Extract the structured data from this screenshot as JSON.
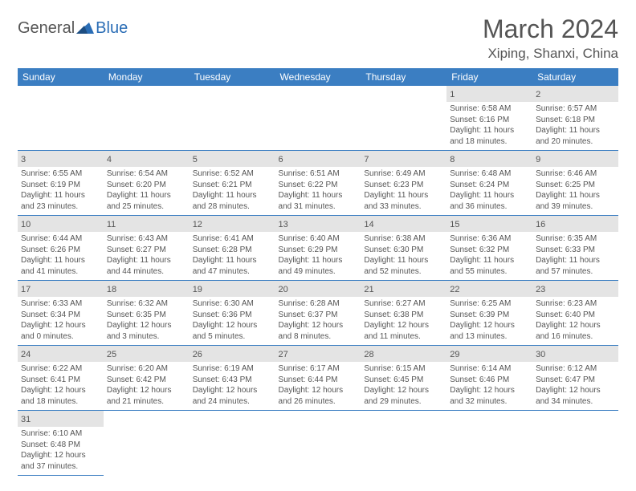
{
  "logo": {
    "general": "General",
    "blue": "Blue"
  },
  "title": "March 2024",
  "location": "Xiping, Shanxi, China",
  "colors": {
    "headerBg": "#3b7ec2",
    "headerText": "#ffffff",
    "dayStripe": "#e4e4e4",
    "rowBorder": "#3b7ec2",
    "bodyText": "#555555",
    "logoBlue": "#2a6db5"
  },
  "dayHeaders": [
    "Sunday",
    "Monday",
    "Tuesday",
    "Wednesday",
    "Thursday",
    "Friday",
    "Saturday"
  ],
  "weeks": [
    [
      null,
      null,
      null,
      null,
      null,
      {
        "n": "1",
        "sr": "Sunrise: 6:58 AM",
        "ss": "Sunset: 6:16 PM",
        "dl1": "Daylight: 11 hours",
        "dl2": "and 18 minutes."
      },
      {
        "n": "2",
        "sr": "Sunrise: 6:57 AM",
        "ss": "Sunset: 6:18 PM",
        "dl1": "Daylight: 11 hours",
        "dl2": "and 20 minutes."
      }
    ],
    [
      {
        "n": "3",
        "sr": "Sunrise: 6:55 AM",
        "ss": "Sunset: 6:19 PM",
        "dl1": "Daylight: 11 hours",
        "dl2": "and 23 minutes."
      },
      {
        "n": "4",
        "sr": "Sunrise: 6:54 AM",
        "ss": "Sunset: 6:20 PM",
        "dl1": "Daylight: 11 hours",
        "dl2": "and 25 minutes."
      },
      {
        "n": "5",
        "sr": "Sunrise: 6:52 AM",
        "ss": "Sunset: 6:21 PM",
        "dl1": "Daylight: 11 hours",
        "dl2": "and 28 minutes."
      },
      {
        "n": "6",
        "sr": "Sunrise: 6:51 AM",
        "ss": "Sunset: 6:22 PM",
        "dl1": "Daylight: 11 hours",
        "dl2": "and 31 minutes."
      },
      {
        "n": "7",
        "sr": "Sunrise: 6:49 AM",
        "ss": "Sunset: 6:23 PM",
        "dl1": "Daylight: 11 hours",
        "dl2": "and 33 minutes."
      },
      {
        "n": "8",
        "sr": "Sunrise: 6:48 AM",
        "ss": "Sunset: 6:24 PM",
        "dl1": "Daylight: 11 hours",
        "dl2": "and 36 minutes."
      },
      {
        "n": "9",
        "sr": "Sunrise: 6:46 AM",
        "ss": "Sunset: 6:25 PM",
        "dl1": "Daylight: 11 hours",
        "dl2": "and 39 minutes."
      }
    ],
    [
      {
        "n": "10",
        "sr": "Sunrise: 6:44 AM",
        "ss": "Sunset: 6:26 PM",
        "dl1": "Daylight: 11 hours",
        "dl2": "and 41 minutes."
      },
      {
        "n": "11",
        "sr": "Sunrise: 6:43 AM",
        "ss": "Sunset: 6:27 PM",
        "dl1": "Daylight: 11 hours",
        "dl2": "and 44 minutes."
      },
      {
        "n": "12",
        "sr": "Sunrise: 6:41 AM",
        "ss": "Sunset: 6:28 PM",
        "dl1": "Daylight: 11 hours",
        "dl2": "and 47 minutes."
      },
      {
        "n": "13",
        "sr": "Sunrise: 6:40 AM",
        "ss": "Sunset: 6:29 PM",
        "dl1": "Daylight: 11 hours",
        "dl2": "and 49 minutes."
      },
      {
        "n": "14",
        "sr": "Sunrise: 6:38 AM",
        "ss": "Sunset: 6:30 PM",
        "dl1": "Daylight: 11 hours",
        "dl2": "and 52 minutes."
      },
      {
        "n": "15",
        "sr": "Sunrise: 6:36 AM",
        "ss": "Sunset: 6:32 PM",
        "dl1": "Daylight: 11 hours",
        "dl2": "and 55 minutes."
      },
      {
        "n": "16",
        "sr": "Sunrise: 6:35 AM",
        "ss": "Sunset: 6:33 PM",
        "dl1": "Daylight: 11 hours",
        "dl2": "and 57 minutes."
      }
    ],
    [
      {
        "n": "17",
        "sr": "Sunrise: 6:33 AM",
        "ss": "Sunset: 6:34 PM",
        "dl1": "Daylight: 12 hours",
        "dl2": "and 0 minutes."
      },
      {
        "n": "18",
        "sr": "Sunrise: 6:32 AM",
        "ss": "Sunset: 6:35 PM",
        "dl1": "Daylight: 12 hours",
        "dl2": "and 3 minutes."
      },
      {
        "n": "19",
        "sr": "Sunrise: 6:30 AM",
        "ss": "Sunset: 6:36 PM",
        "dl1": "Daylight: 12 hours",
        "dl2": "and 5 minutes."
      },
      {
        "n": "20",
        "sr": "Sunrise: 6:28 AM",
        "ss": "Sunset: 6:37 PM",
        "dl1": "Daylight: 12 hours",
        "dl2": "and 8 minutes."
      },
      {
        "n": "21",
        "sr": "Sunrise: 6:27 AM",
        "ss": "Sunset: 6:38 PM",
        "dl1": "Daylight: 12 hours",
        "dl2": "and 11 minutes."
      },
      {
        "n": "22",
        "sr": "Sunrise: 6:25 AM",
        "ss": "Sunset: 6:39 PM",
        "dl1": "Daylight: 12 hours",
        "dl2": "and 13 minutes."
      },
      {
        "n": "23",
        "sr": "Sunrise: 6:23 AM",
        "ss": "Sunset: 6:40 PM",
        "dl1": "Daylight: 12 hours",
        "dl2": "and 16 minutes."
      }
    ],
    [
      {
        "n": "24",
        "sr": "Sunrise: 6:22 AM",
        "ss": "Sunset: 6:41 PM",
        "dl1": "Daylight: 12 hours",
        "dl2": "and 18 minutes."
      },
      {
        "n": "25",
        "sr": "Sunrise: 6:20 AM",
        "ss": "Sunset: 6:42 PM",
        "dl1": "Daylight: 12 hours",
        "dl2": "and 21 minutes."
      },
      {
        "n": "26",
        "sr": "Sunrise: 6:19 AM",
        "ss": "Sunset: 6:43 PM",
        "dl1": "Daylight: 12 hours",
        "dl2": "and 24 minutes."
      },
      {
        "n": "27",
        "sr": "Sunrise: 6:17 AM",
        "ss": "Sunset: 6:44 PM",
        "dl1": "Daylight: 12 hours",
        "dl2": "and 26 minutes."
      },
      {
        "n": "28",
        "sr": "Sunrise: 6:15 AM",
        "ss": "Sunset: 6:45 PM",
        "dl1": "Daylight: 12 hours",
        "dl2": "and 29 minutes."
      },
      {
        "n": "29",
        "sr": "Sunrise: 6:14 AM",
        "ss": "Sunset: 6:46 PM",
        "dl1": "Daylight: 12 hours",
        "dl2": "and 32 minutes."
      },
      {
        "n": "30",
        "sr": "Sunrise: 6:12 AM",
        "ss": "Sunset: 6:47 PM",
        "dl1": "Daylight: 12 hours",
        "dl2": "and 34 minutes."
      }
    ],
    [
      {
        "n": "31",
        "sr": "Sunrise: 6:10 AM",
        "ss": "Sunset: 6:48 PM",
        "dl1": "Daylight: 12 hours",
        "dl2": "and 37 minutes."
      },
      null,
      null,
      null,
      null,
      null,
      null
    ]
  ]
}
